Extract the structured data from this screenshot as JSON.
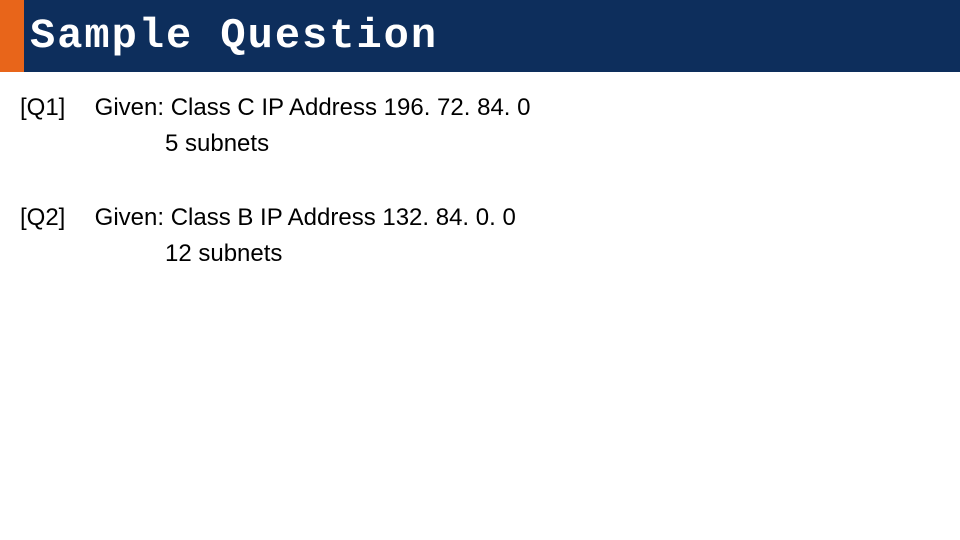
{
  "header": {
    "title": "Sample Question",
    "accent_color": "#e8651a",
    "bg_color": "#0d2e5c",
    "title_color": "#ffffff",
    "title_fontsize": 42
  },
  "questions": [
    {
      "label": "[Q1]",
      "line1": "Given: Class C IP Address 196. 72. 84. 0",
      "line2": "5 subnets"
    },
    {
      "label": "[Q2]",
      "line1": "Given: Class B IP Address 132. 84. 0. 0",
      "line2": "12 subnets"
    }
  ],
  "body": {
    "text_color": "#000000",
    "text_fontsize": 24,
    "bg_color": "#ffffff"
  }
}
